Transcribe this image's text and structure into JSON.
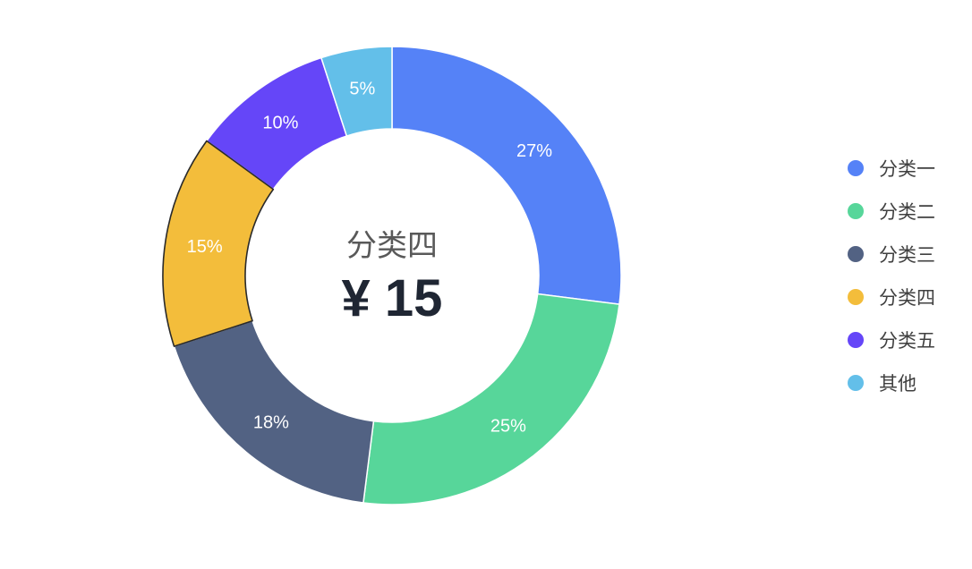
{
  "chart_data": {
    "type": "pie",
    "categories": [
      "分类一",
      "分类二",
      "分类三",
      "分类四",
      "分类五",
      "其他"
    ],
    "values": [
      27,
      25,
      18,
      15,
      10,
      5
    ],
    "labels": [
      "27%",
      "25%",
      "18%",
      "15%",
      "10%",
      "5%"
    ],
    "colors": [
      "#5582f7",
      "#57d69a",
      "#526283",
      "#f3bd3b",
      "#6546f8",
      "#63bfe9"
    ],
    "highlighted_index": 3,
    "center": {
      "name": "分类四",
      "value": "¥ 15"
    },
    "legend_position": "right",
    "donut": true
  }
}
